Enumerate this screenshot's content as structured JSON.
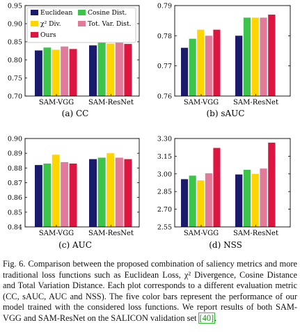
{
  "colors": {
    "Euclidean": "#1b1b6b",
    "Cosine Dist.": "#3cc34a",
    "chi2 Div.": "#ffd500",
    "Tot. Var. Dist.": "#e07c99",
    "Ours": "#dc1640"
  },
  "legend": {
    "items": [
      {
        "key": "Euclidean",
        "label": "Euclidean"
      },
      {
        "key": "Cosine Dist.",
        "label": "Cosine Dist."
      },
      {
        "key": "chi2 Div.",
        "label": "χ² Div."
      },
      {
        "key": "Tot. Var. Dist.",
        "label": "Tot. Var. Dist."
      },
      {
        "key": "Ours",
        "label": "Ours"
      }
    ],
    "placement": "top-left of plot (a)"
  },
  "chart_data": [
    {
      "id": "a",
      "type": "bar",
      "subtitle": "(a)  CC",
      "categories": [
        "SAM-VGG",
        "SAM-ResNet"
      ],
      "series": [
        {
          "name": "Euclidean",
          "values": [
            0.826,
            0.84
          ]
        },
        {
          "name": "Cosine Dist.",
          "values": [
            0.834,
            0.849
          ]
        },
        {
          "name": "χ² Div.",
          "values": [
            0.828,
            0.845
          ]
        },
        {
          "name": "Tot. Var. Dist.",
          "values": [
            0.837,
            0.852
          ]
        },
        {
          "name": "Ours",
          "values": [
            0.83,
            0.844
          ]
        }
      ],
      "ylim": [
        0.7,
        0.95
      ],
      "yticks": [
        "0.70",
        "0.75",
        "0.80",
        "0.85",
        "0.90",
        "0.95"
      ],
      "grid": false,
      "legend": true
    },
    {
      "id": "b",
      "type": "bar",
      "subtitle": "(b)  sAUC",
      "categories": [
        "SAM-VGG",
        "SAM-ResNet"
      ],
      "series": [
        {
          "name": "Euclidean",
          "values": [
            0.776,
            0.78
          ]
        },
        {
          "name": "Cosine Dist.",
          "values": [
            0.779,
            0.786
          ]
        },
        {
          "name": "χ² Div.",
          "values": [
            0.782,
            0.786
          ]
        },
        {
          "name": "Tot. Var. Dist.",
          "values": [
            0.78,
            0.786
          ]
        },
        {
          "name": "Ours",
          "values": [
            0.782,
            0.787
          ]
        }
      ],
      "ylim": [
        0.76,
        0.79
      ],
      "yticks": [
        "0.76",
        "0.77",
        "0.78",
        "0.79"
      ],
      "grid": false,
      "legend": false
    },
    {
      "id": "c",
      "type": "bar",
      "subtitle": "(c)  AUC",
      "categories": [
        "SAM-VGG",
        "SAM-ResNet"
      ],
      "series": [
        {
          "name": "Euclidean",
          "values": [
            0.882,
            0.886
          ]
        },
        {
          "name": "Cosine Dist.",
          "values": [
            0.883,
            0.887
          ]
        },
        {
          "name": "χ² Div.",
          "values": [
            0.889,
            0.89
          ]
        },
        {
          "name": "Tot. Var. Dist.",
          "values": [
            0.884,
            0.887
          ]
        },
        {
          "name": "Ours",
          "values": [
            0.883,
            0.886
          ]
        }
      ],
      "ylim": [
        0.84,
        0.9
      ],
      "yticks": [
        "0.84",
        "0.85",
        "0.86",
        "0.87",
        "0.88",
        "0.89",
        "0.90"
      ],
      "grid": false,
      "legend": false
    },
    {
      "id": "d",
      "type": "bar",
      "subtitle": "(d)  NSS",
      "categories": [
        "SAM-VGG",
        "SAM-ResNet"
      ],
      "series": [
        {
          "name": "Euclidean",
          "values": [
            2.955,
            2.995
          ]
        },
        {
          "name": "Cosine Dist.",
          "values": [
            2.985,
            3.035
          ]
        },
        {
          "name": "χ² Div.",
          "values": [
            2.945,
            3.0
          ]
        },
        {
          "name": "Tot. Var. Dist.",
          "values": [
            3.005,
            3.045
          ]
        },
        {
          "name": "Ours",
          "values": [
            3.22,
            3.265
          ]
        }
      ],
      "ylim": [
        2.55,
        3.3
      ],
      "yticks": [
        "2.55",
        "2.70",
        "2.85",
        "3.00",
        "3.15",
        "3.30"
      ],
      "grid": false,
      "legend": false
    }
  ],
  "caption": {
    "label": "Fig. 6.",
    "text": "Comparison between the proposed combination of saliency metrics and more traditional loss functions such as Euclidean Loss, χ² Divergence, Cosine Distance and Total Variation Distance. Each plot corresponds to a different evaluation metric (CC, sAUC, AUC and NSS). The five color bars represent the performance of our model trained with the considered loss functions. We report results of both SAM-VGG and SAM-ResNet on the SALICON validation set ",
    "ref": "[40]",
    "end": "."
  }
}
